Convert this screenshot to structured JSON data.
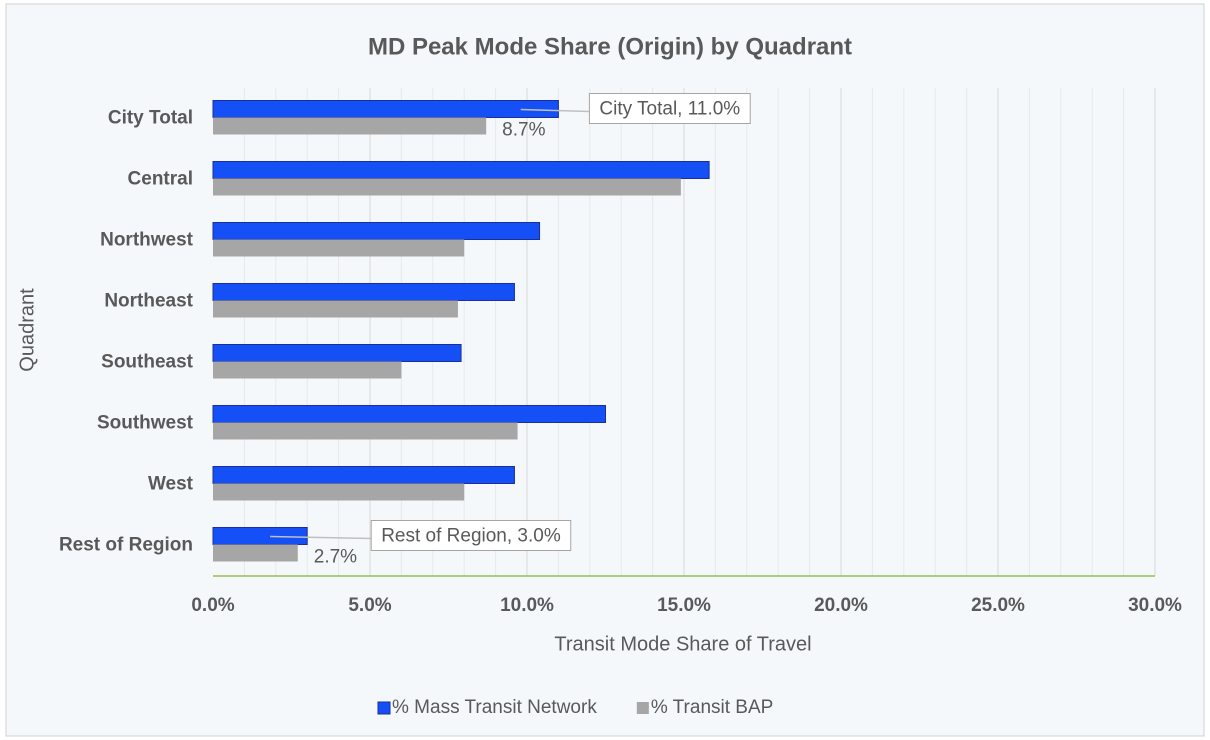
{
  "chart_data": {
    "type": "hbar",
    "title": "MD Peak Mode Share (Origin) by Quadrant",
    "x_label": "Transit Mode Share of Travel",
    "y_label": "Quadrant",
    "categories": [
      "City Total",
      "Central",
      "Northwest",
      "Northeast",
      "Southeast",
      "Southwest",
      "West",
      "Rest of Region"
    ],
    "series": [
      {
        "name": "% Mass Transit Network",
        "color": "#1450f5",
        "values": [
          11.0,
          15.8,
          10.4,
          9.6,
          7.9,
          12.5,
          9.6,
          3.0
        ],
        "value_labels": [
          "City Total, 11.0%",
          null,
          null,
          null,
          null,
          null,
          null,
          "Rest of Region, 3.0%"
        ]
      },
      {
        "name": "% Transit BAP",
        "color": "#a6a6a6",
        "values": [
          8.7,
          14.9,
          8.0,
          7.8,
          6.0,
          9.7,
          8.0,
          2.7
        ],
        "value_labels": [
          "8.7%",
          null,
          null,
          null,
          null,
          null,
          null,
          "2.7%"
        ]
      }
    ],
    "xlim": [
      0,
      30
    ],
    "xticks": [
      {
        "value": 0,
        "label": "0.0%"
      },
      {
        "value": 5,
        "label": "5.0%"
      },
      {
        "value": 10,
        "label": "10.0%"
      },
      {
        "value": 15,
        "label": "15.0%"
      },
      {
        "value": 20,
        "label": "20.0%"
      },
      {
        "value": 25,
        "label": "25.0%"
      },
      {
        "value": 30,
        "label": "30.0%"
      }
    ],
    "grid": true,
    "legend": "bottom"
  }
}
